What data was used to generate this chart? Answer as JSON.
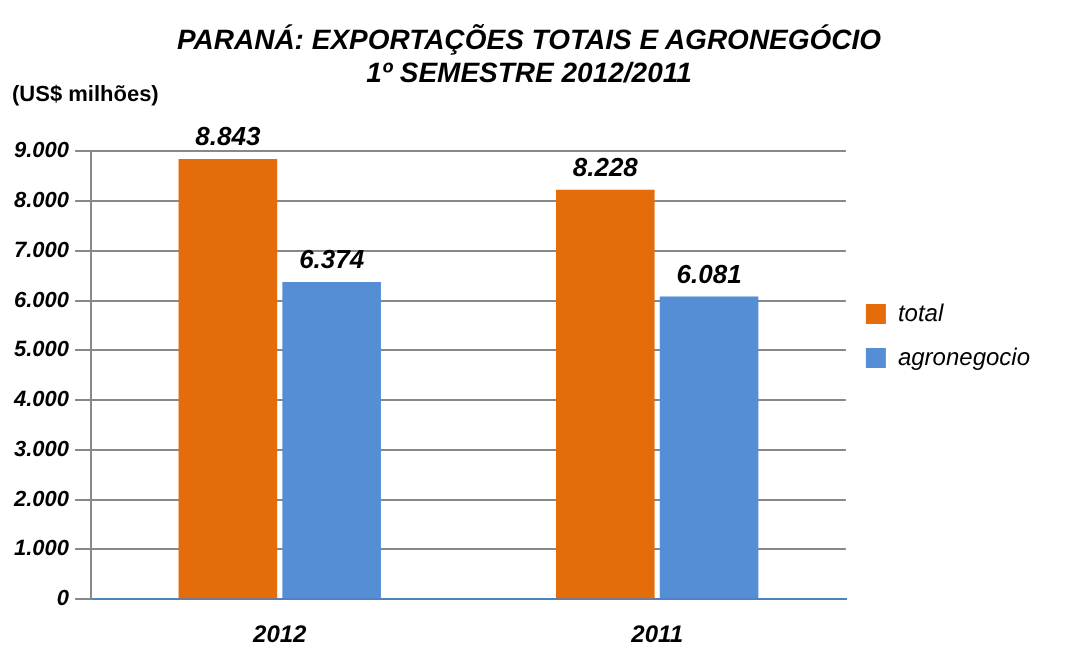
{
  "chart_data": {
    "type": "bar",
    "title": "PARANÁ: EXPORTAÇÕES TOTAIS E AGRONEGÓCIO",
    "subtitle": "1º SEMESTRE 2012/2011",
    "ylabel": "(US$ milhões)",
    "categories": [
      "2012",
      "2011"
    ],
    "series": [
      {
        "name": "total",
        "color": "#e46c0a",
        "values": [
          8843,
          8228
        ],
        "value_labels": [
          "8.843",
          "8.228"
        ]
      },
      {
        "name": "agronegocio",
        "color": "#558ed5",
        "values": [
          6374,
          6081
        ],
        "value_labels": [
          "6.374",
          "6.081"
        ]
      }
    ],
    "ylim": [
      0,
      9000
    ],
    "yticks": [
      {
        "value": 0,
        "label": "0"
      },
      {
        "value": 1000,
        "label": "1.000"
      },
      {
        "value": 2000,
        "label": "2.000"
      },
      {
        "value": 3000,
        "label": "3.000"
      },
      {
        "value": 4000,
        "label": "4.000"
      },
      {
        "value": 5000,
        "label": "5.000"
      },
      {
        "value": 6000,
        "label": "6.000"
      },
      {
        "value": 7000,
        "label": "7.000"
      },
      {
        "value": 8000,
        "label": "8.000"
      },
      {
        "value": 9000,
        "label": "9.000"
      }
    ],
    "grid": "y",
    "legend": "right"
  }
}
